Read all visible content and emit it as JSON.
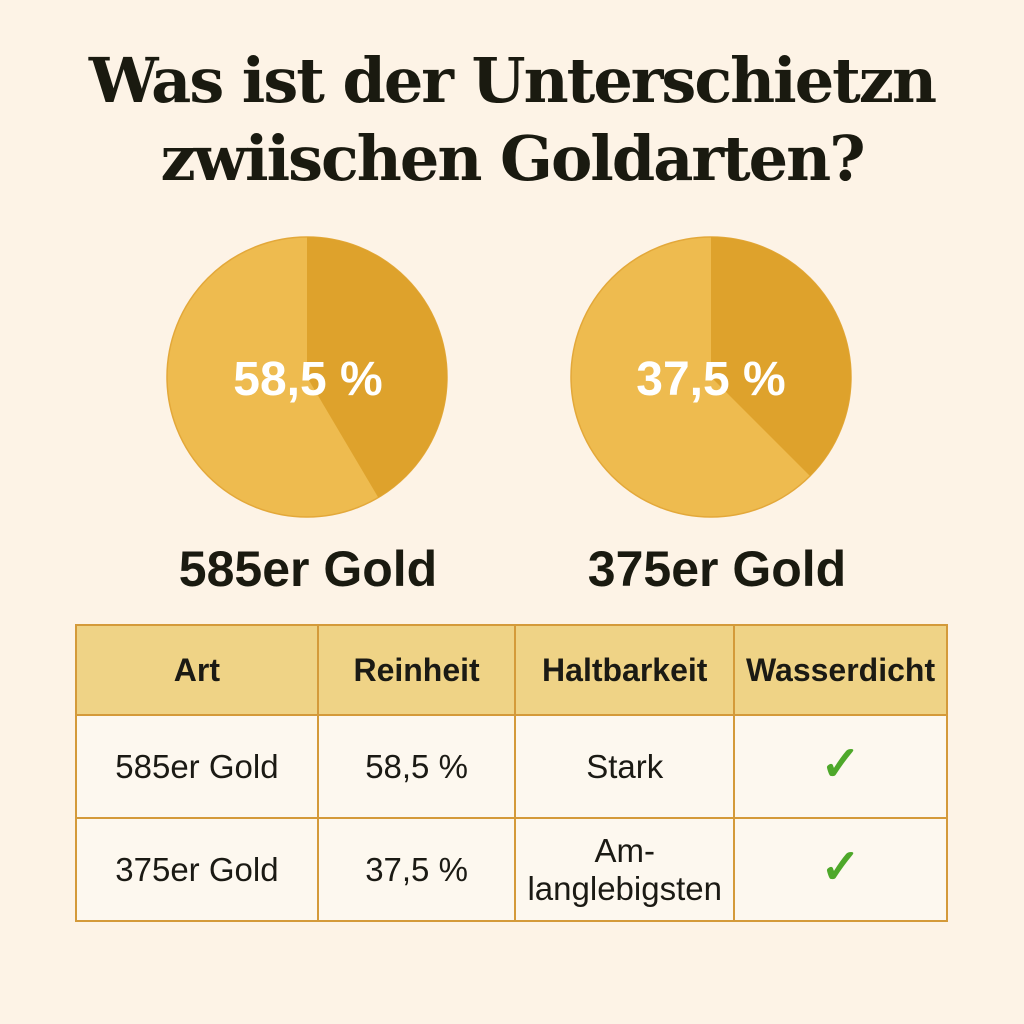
{
  "title": {
    "line1": "Was ist der Unterschietzn",
    "line2": "zwiischen Goldarten?"
  },
  "colors": {
    "background": "#fdf3e6",
    "pie_light": "#eebb4f",
    "pie_dark": "#dea22c",
    "table_header": "#efd386",
    "border": "#d49a3a",
    "check": "#4ea82a"
  },
  "chart_data": [
    {
      "type": "pie",
      "label": "58,5 %",
      "caption": "585er Gold",
      "values": [
        58.5,
        41.5
      ]
    },
    {
      "type": "pie",
      "label": "37,5 %",
      "caption": "375er Gold",
      "values": [
        62.5,
        37.5
      ]
    }
  ],
  "table": {
    "headers": [
      "Art",
      "Reinheit",
      "Haltbarkeit",
      "Wasserdicht"
    ],
    "rows": [
      {
        "art": "585er Gold",
        "reinheit": "58,5 %",
        "haltbarkeit": "Stark",
        "wasserdicht": "check-icon"
      },
      {
        "art": "375er Gold",
        "reinheit": "37,5 %",
        "haltbarkeit": "Am-\nlanglebigsten",
        "wasserdicht": "check-icon"
      }
    ]
  }
}
